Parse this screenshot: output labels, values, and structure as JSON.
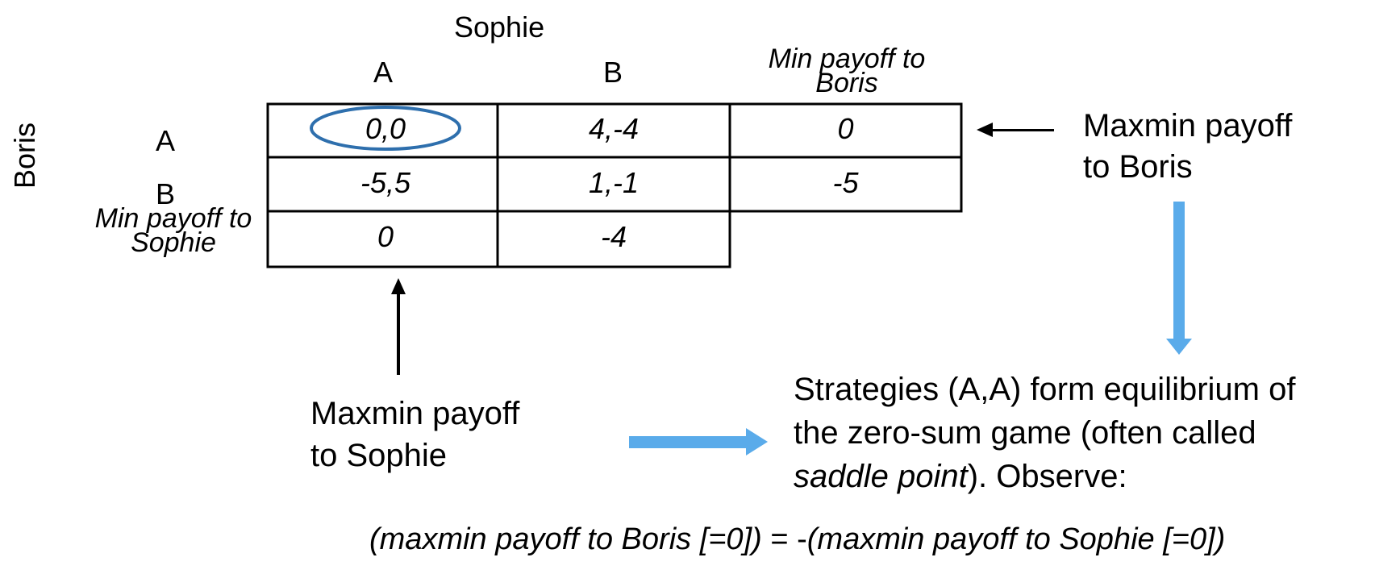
{
  "column_player": "Sophie",
  "row_player": "Boris",
  "column_headers": [
    "A",
    "B"
  ],
  "column_min_header": "Min payoff to Boris",
  "row_headers": [
    "A",
    "B"
  ],
  "row_min_header": "Min payoff to Sophie",
  "cells": [
    [
      "0,0",
      "4,-4",
      "0"
    ],
    [
      "-5,5",
      "1,-1",
      "-5"
    ],
    [
      "0",
      "-4",
      ""
    ]
  ],
  "annotations": {
    "boris_maxmin": [
      "Maxmin payoff",
      "to Boris"
    ],
    "sophie_maxmin": [
      "Maxmin payoff",
      "to Sophie"
    ],
    "equilibrium_line1": "Strategies (A,A) form equilibrium of",
    "equilibrium_line2": "the zero-sum game (often called",
    "equilibrium_line3_italic": "saddle point",
    "equilibrium_line3_rest": "). Observe:",
    "formula_left": "(maxmin payoff to Boris [=0])",
    "formula_equals": " = -",
    "formula_right": "(maxmin payoff to Sophie [=0])"
  },
  "colors": {
    "ellipse": "#2e6fad",
    "blue_arrow": "#5aabea",
    "grid_line": "#000000"
  }
}
